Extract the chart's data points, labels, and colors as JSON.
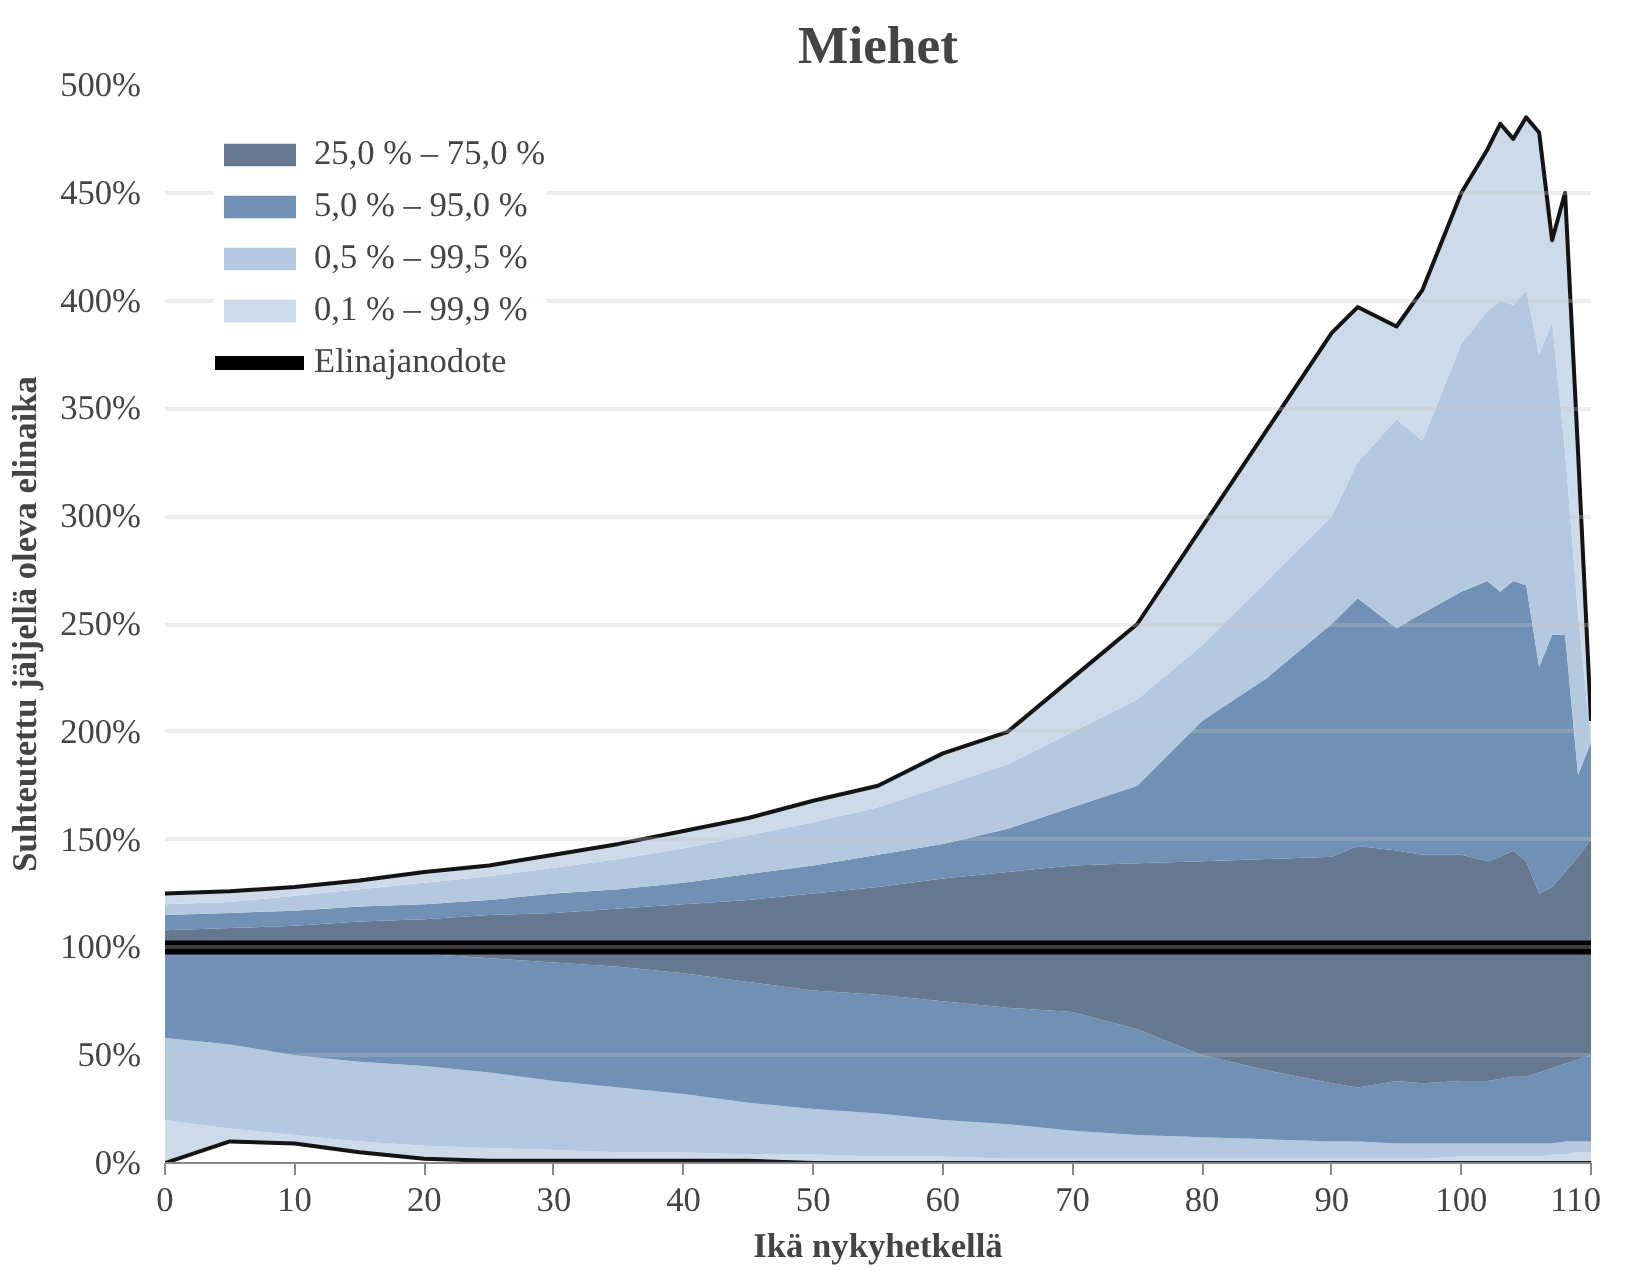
{
  "chart_data": {
    "type": "area",
    "stacked": true,
    "title": "Miehet",
    "xlabel": "Ikä nykyhetkellä",
    "ylabel": "Suhteutettu jäljellä oleva elinaika",
    "x": [
      0,
      5,
      10,
      15,
      20,
      25,
      30,
      35,
      40,
      45,
      50,
      55,
      60,
      65,
      70,
      75,
      80,
      85,
      90,
      92,
      95,
      97,
      100,
      102,
      103,
      104,
      105,
      106,
      107,
      108,
      109,
      110
    ],
    "series": [
      {
        "color": "#ffffff",
        "values": [
          0,
          10,
          9,
          5,
          2,
          1,
          1,
          1,
          1,
          1,
          0,
          0,
          0,
          0,
          0,
          0,
          0,
          0,
          0,
          0,
          0,
          0,
          0,
          0,
          0,
          0,
          0,
          0,
          0,
          0,
          0,
          0
        ]
      },
      {
        "color": "#ccdaea",
        "values": [
          20,
          6,
          4,
          5,
          6,
          6,
          5,
          4,
          4,
          3,
          4,
          3,
          3,
          2,
          2,
          2,
          2,
          2,
          2,
          2,
          2,
          2,
          3,
          3,
          3,
          3,
          3,
          3,
          4,
          4,
          5,
          5
        ]
      },
      {
        "color": "#b4c8e0",
        "values": [
          38,
          39,
          37,
          37,
          37,
          35,
          32,
          30,
          27,
          24,
          21,
          20,
          17,
          16,
          13,
          11,
          10,
          9,
          8,
          8,
          7,
          7,
          6,
          6,
          6,
          6,
          6,
          6,
          5,
          6,
          5,
          5
        ]
      },
      {
        "color": "#7090b5",
        "values": [
          42,
          44,
          49,
          51,
          52,
          53,
          55,
          56,
          56,
          56,
          55,
          55,
          55,
          54,
          55,
          49,
          38,
          32,
          27,
          25,
          29,
          28,
          29,
          29,
          30,
          31,
          31,
          33,
          35,
          36,
          38,
          40
        ]
      },
      {
        "name": "25,0 % – 75,0 %",
        "color": "#66788f",
        "values": [
          8,
          10,
          11,
          14,
          16,
          20,
          23,
          27,
          32,
          38,
          45,
          50,
          57,
          63,
          68,
          77,
          90,
          98,
          105,
          112,
          107,
          106,
          105,
          102,
          103,
          105,
          100,
          83,
          84,
          89,
          94,
          100
        ]
      },
      {
        "name": "5,0 % – 95,0 %",
        "color": "#7090b5",
        "values": [
          7,
          7,
          7,
          7,
          7,
          7,
          9,
          9,
          10,
          12,
          13,
          15,
          16,
          20,
          27,
          36,
          65,
          84,
          108,
          115,
          103,
          112,
          122,
          130,
          123,
          125,
          128,
          105,
          117,
          110,
          38,
          45
        ]
      },
      {
        "name": "0,5 % – 99,5 %",
        "color": "#b4c8e0",
        "values": [
          5,
          5,
          7,
          8,
          10,
          11,
          12,
          14,
          16,
          18,
          20,
          22,
          27,
          30,
          35,
          40,
          35,
          45,
          50,
          63,
          97,
          80,
          115,
          125,
          135,
          128,
          137,
          145,
          145,
          85,
          75,
          0
        ]
      },
      {
        "name": "0,1 % – 99,9 %",
        "color": "#ccdaea",
        "values": [
          5,
          5,
          4,
          4,
          5,
          5,
          6,
          7,
          8,
          8,
          10,
          10,
          15,
          15,
          25,
          35,
          55,
          70,
          85,
          72,
          43,
          70,
          70,
          75,
          82,
          77,
          80,
          103,
          38,
          120,
          75,
          10
        ]
      },
      {
        "type": "line",
        "name": "Elinajanodote",
        "color": "#000000",
        "values": [
          100,
          100,
          100,
          100,
          100,
          100,
          100,
          100,
          100,
          100,
          100,
          100,
          100,
          100,
          100,
          100,
          100,
          100,
          100,
          100,
          100,
          100,
          100,
          100,
          100,
          100,
          100,
          100,
          100,
          100,
          100,
          100
        ]
      }
    ],
    "xlim": [
      0,
      110
    ],
    "xticks": [
      0,
      10,
      20,
      30,
      40,
      50,
      60,
      70,
      80,
      90,
      100,
      110
    ],
    "ylim": [
      0,
      500
    ],
    "yticks": [
      {
        "value": 0,
        "label": "0%"
      },
      {
        "value": 50,
        "label": "50%"
      },
      {
        "value": 100,
        "label": "100%"
      },
      {
        "value": 150,
        "label": "150%"
      },
      {
        "value": 200,
        "label": "200%"
      },
      {
        "value": 250,
        "label": "250%"
      },
      {
        "value": 300,
        "label": "300%"
      },
      {
        "value": 350,
        "label": "350%"
      },
      {
        "value": 400,
        "label": "400%"
      },
      {
        "value": 450,
        "label": "450%"
      },
      {
        "value": 500,
        "label": "500%"
      }
    ],
    "grid": "y",
    "legend": "top left"
  }
}
